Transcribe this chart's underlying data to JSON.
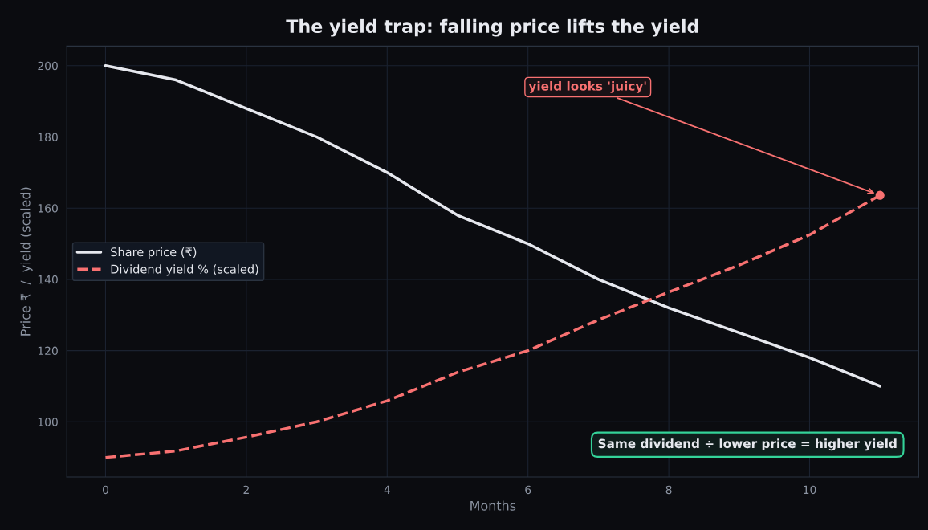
{
  "chart_data": {
    "type": "line",
    "title": "The yield trap: falling price lifts the yield",
    "xlabel": "Months",
    "ylabel": "Price ₹  /  yield (scaled)",
    "x": [
      0,
      1,
      2,
      3,
      4,
      5,
      6,
      7,
      8,
      9,
      10,
      11
    ],
    "series": [
      {
        "name": "Share price (₹)",
        "color": "#e6e8ee",
        "line_style": "solid",
        "values": [
          200,
          196,
          188,
          180,
          170,
          158,
          150,
          140,
          132,
          125,
          118,
          110
        ]
      },
      {
        "name": "Dividend yield % (scaled)",
        "color": "#f87171",
        "line_style": "dashed",
        "values": [
          90,
          91.8,
          95.7,
          100,
          105.9,
          113.9,
          120,
          128.6,
          136.4,
          144,
          152.5,
          163.6
        ]
      },
      {
        "type": "scatter",
        "color": "#f87171",
        "marker": "circle",
        "x": [
          11
        ],
        "values": [
          163.6
        ]
      }
    ],
    "xlim": [
      -0.55,
      11.55
    ],
    "ylim": [
      84.5,
      205.5
    ],
    "xticks": [
      0,
      2,
      4,
      6,
      8,
      10
    ],
    "yticks": [
      100,
      120,
      140,
      160,
      180,
      200
    ],
    "grid": true,
    "legend": "center left",
    "annotations": [
      {
        "text": "yield looks 'juicy'",
        "x": 11,
        "y": 163.6
      },
      "Same dividend ÷ lower price = higher yield"
    ]
  }
}
